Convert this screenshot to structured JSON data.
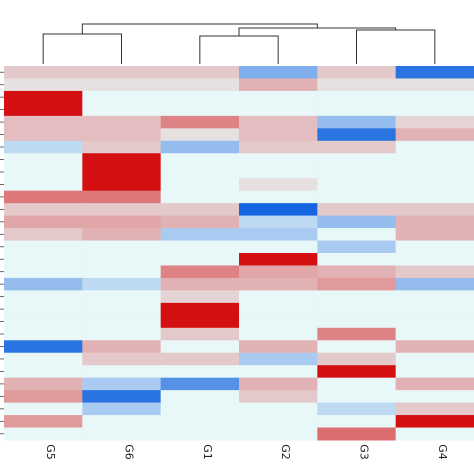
{
  "chart_data": {
    "type": "heatmap",
    "title": "",
    "xlabel": "",
    "ylabel": "",
    "columns": [
      "G5",
      "G6",
      "G1",
      "G2",
      "G3",
      "G4"
    ],
    "dendrogram": {
      "merges": [
        {
          "left": "G5",
          "right": "G6"
        },
        {
          "left": "G1",
          "right": "G2"
        },
        {
          "left": "G3",
          "right": "G4"
        },
        {
          "left": "G1+G2",
          "right": "G3+G4"
        },
        {
          "left": "G5+G6",
          "right": "G1+G2+G3+G4"
        }
      ]
    },
    "color_scale": {
      "low": "#1565e0",
      "mid": "#e8f7f8",
      "high": "#d40f12",
      "range": [
        -1,
        1
      ]
    },
    "rows": [
      [
        0.2,
        0.2,
        0.2,
        -0.5,
        0.2,
        -0.9
      ],
      [
        0.1,
        0.1,
        0.1,
        0.3,
        0.1,
        0.1
      ],
      [
        1.0,
        0.0,
        0.0,
        0.0,
        0.0,
        0.0
      ],
      [
        1.0,
        0.0,
        0.0,
        0.0,
        0.0,
        0.0
      ],
      [
        0.25,
        0.25,
        0.5,
        0.25,
        -0.4,
        0.15
      ],
      [
        0.25,
        0.25,
        0.1,
        0.25,
        -0.9,
        0.3
      ],
      [
        -0.2,
        0.2,
        -0.4,
        0.2,
        0.2,
        0.0
      ],
      [
        0.0,
        1.0,
        0.0,
        0.0,
        0.0,
        0.0
      ],
      [
        0.0,
        1.0,
        0.0,
        0.0,
        0.0,
        0.0
      ],
      [
        0.0,
        1.0,
        0.0,
        0.1,
        0.0,
        0.0
      ],
      [
        0.55,
        0.55,
        0.0,
        0.0,
        0.0,
        0.0
      ],
      [
        0.2,
        0.2,
        0.2,
        -1.0,
        0.2,
        0.2
      ],
      [
        0.35,
        0.35,
        0.3,
        -0.2,
        -0.4,
        0.3
      ],
      [
        0.2,
        0.3,
        -0.3,
        -0.3,
        0.0,
        0.3
      ],
      [
        0.0,
        0.0,
        0.0,
        0.0,
        -0.3,
        0.0
      ],
      [
        0.0,
        0.0,
        0.0,
        1.0,
        0.0,
        0.0
      ],
      [
        0.0,
        0.0,
        0.5,
        0.35,
        0.3,
        0.2
      ],
      [
        -0.4,
        -0.2,
        0.3,
        0.3,
        0.4,
        -0.4
      ],
      [
        0.0,
        0.0,
        0.15,
        0.0,
        0.0,
        0.0
      ],
      [
        0.0,
        0.0,
        1.0,
        0.0,
        0.0,
        0.0
      ],
      [
        0.0,
        0.0,
        1.0,
        0.0,
        0.0,
        0.0
      ],
      [
        0.0,
        0.0,
        0.2,
        0.0,
        0.5,
        0.0
      ],
      [
        -0.9,
        0.3,
        0.0,
        0.3,
        0.0,
        0.3
      ],
      [
        0.0,
        0.2,
        0.2,
        -0.3,
        0.2,
        0.0
      ],
      [
        0.0,
        0.0,
        0.0,
        0.0,
        1.0,
        0.0
      ],
      [
        0.3,
        -0.3,
        -0.7,
        0.3,
        0.0,
        0.3
      ],
      [
        0.4,
        -0.9,
        0.0,
        0.2,
        0.0,
        0.0
      ],
      [
        0.0,
        -0.3,
        0.0,
        0.0,
        -0.2,
        0.2
      ],
      [
        0.4,
        0.0,
        0.0,
        0.0,
        0.0,
        1.0
      ],
      [
        0.0,
        0.0,
        0.0,
        0.0,
        0.6,
        0.0
      ]
    ]
  }
}
